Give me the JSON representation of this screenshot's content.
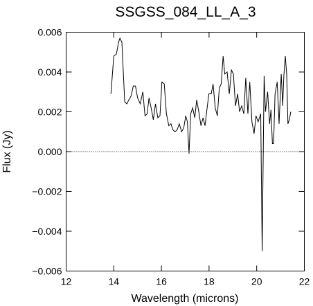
{
  "chart_data": {
    "type": "line",
    "title": "SSGSS_084_LL_A_3",
    "xlabel": "Wavelength (microns)",
    "ylabel": "Flux (Jy)",
    "xlim": [
      12,
      22
    ],
    "ylim": [
      -0.006,
      0.006
    ],
    "x_ticks": [
      {
        "value": 12,
        "label": "12"
      },
      {
        "value": 14,
        "label": "14"
      },
      {
        "value": 16,
        "label": "16"
      },
      {
        "value": 18,
        "label": "18"
      },
      {
        "value": 20,
        "label": "20"
      },
      {
        "value": 22,
        "label": "22"
      }
    ],
    "y_ticks": [
      {
        "value": -0.006,
        "label": "−0.006"
      },
      {
        "value": -0.004,
        "label": "−0.004"
      },
      {
        "value": -0.002,
        "label": "−0.002"
      },
      {
        "value": 0.0,
        "label": "0.000"
      },
      {
        "value": 0.002,
        "label": "0.002"
      },
      {
        "value": 0.004,
        "label": "0.004"
      },
      {
        "value": 0.006,
        "label": "0.006"
      }
    ],
    "reference_line": {
      "y": 0.0,
      "style": "dotted"
    },
    "grid": false,
    "series": [
      {
        "x": [
          13.88,
          14.0,
          14.11,
          14.2,
          14.26,
          14.34,
          14.46,
          14.55,
          14.63,
          14.73,
          14.82,
          14.91,
          15.0,
          15.11,
          15.22,
          15.31,
          15.4,
          15.48,
          15.57,
          15.66,
          15.75,
          15.85,
          15.94,
          16.02,
          16.12,
          16.21,
          16.31,
          16.4,
          16.48,
          16.57,
          16.66,
          16.75,
          16.85,
          16.94,
          17.02,
          17.09,
          17.16,
          17.23,
          17.31,
          17.4,
          17.48,
          17.57,
          17.66,
          17.75,
          17.83,
          17.91,
          17.99,
          18.09,
          18.17,
          18.26,
          18.35,
          18.43,
          18.51,
          18.59,
          18.66,
          18.76,
          18.85,
          18.94,
          19.02,
          19.11,
          19.2,
          19.28,
          19.37,
          19.46,
          19.54,
          19.63,
          19.71,
          19.8,
          19.89,
          19.97,
          20.06,
          20.17,
          20.23,
          20.31,
          20.37,
          20.46,
          20.54,
          20.6,
          20.66,
          20.71,
          20.77,
          20.86,
          20.94,
          21.03,
          21.09,
          21.14,
          21.2,
          21.26,
          21.31,
          21.37,
          21.43
        ],
        "y": [
          0.0029,
          0.0048,
          0.0049,
          0.0055,
          0.0057,
          0.0055,
          0.0025,
          0.0024,
          0.0026,
          0.0028,
          0.0033,
          0.0033,
          0.0027,
          0.0024,
          0.003,
          0.0018,
          0.0019,
          0.0027,
          0.0022,
          0.0016,
          0.0024,
          0.0017,
          0.0018,
          0.0035,
          0.0034,
          0.0019,
          0.0013,
          0.0014,
          0.0011,
          0.001,
          0.0011,
          0.0014,
          0.001,
          0.0012,
          0.0018,
          0.0015,
          -0.0001,
          0.0019,
          0.0022,
          0.0017,
          0.0026,
          0.002,
          0.0013,
          0.0017,
          0.0013,
          0.0021,
          0.0029,
          0.0029,
          0.0034,
          0.0022,
          0.0018,
          0.0032,
          0.0034,
          0.0048,
          0.0039,
          0.004,
          0.0029,
          0.0041,
          0.0039,
          0.0023,
          0.0029,
          0.002,
          0.0023,
          0.0019,
          0.0037,
          0.0019,
          0.0035,
          0.0015,
          0.0009,
          0.0018,
          0.0015,
          0.0019,
          -0.005,
          0.0038,
          0.002,
          0.003,
          0.0014,
          0.0021,
          0.0004,
          0.0004,
          0.0029,
          0.0035,
          0.0014,
          0.0039,
          0.0023,
          0.0038,
          0.0048,
          0.0039,
          0.0014,
          0.0016,
          0.002
        ]
      }
    ]
  }
}
